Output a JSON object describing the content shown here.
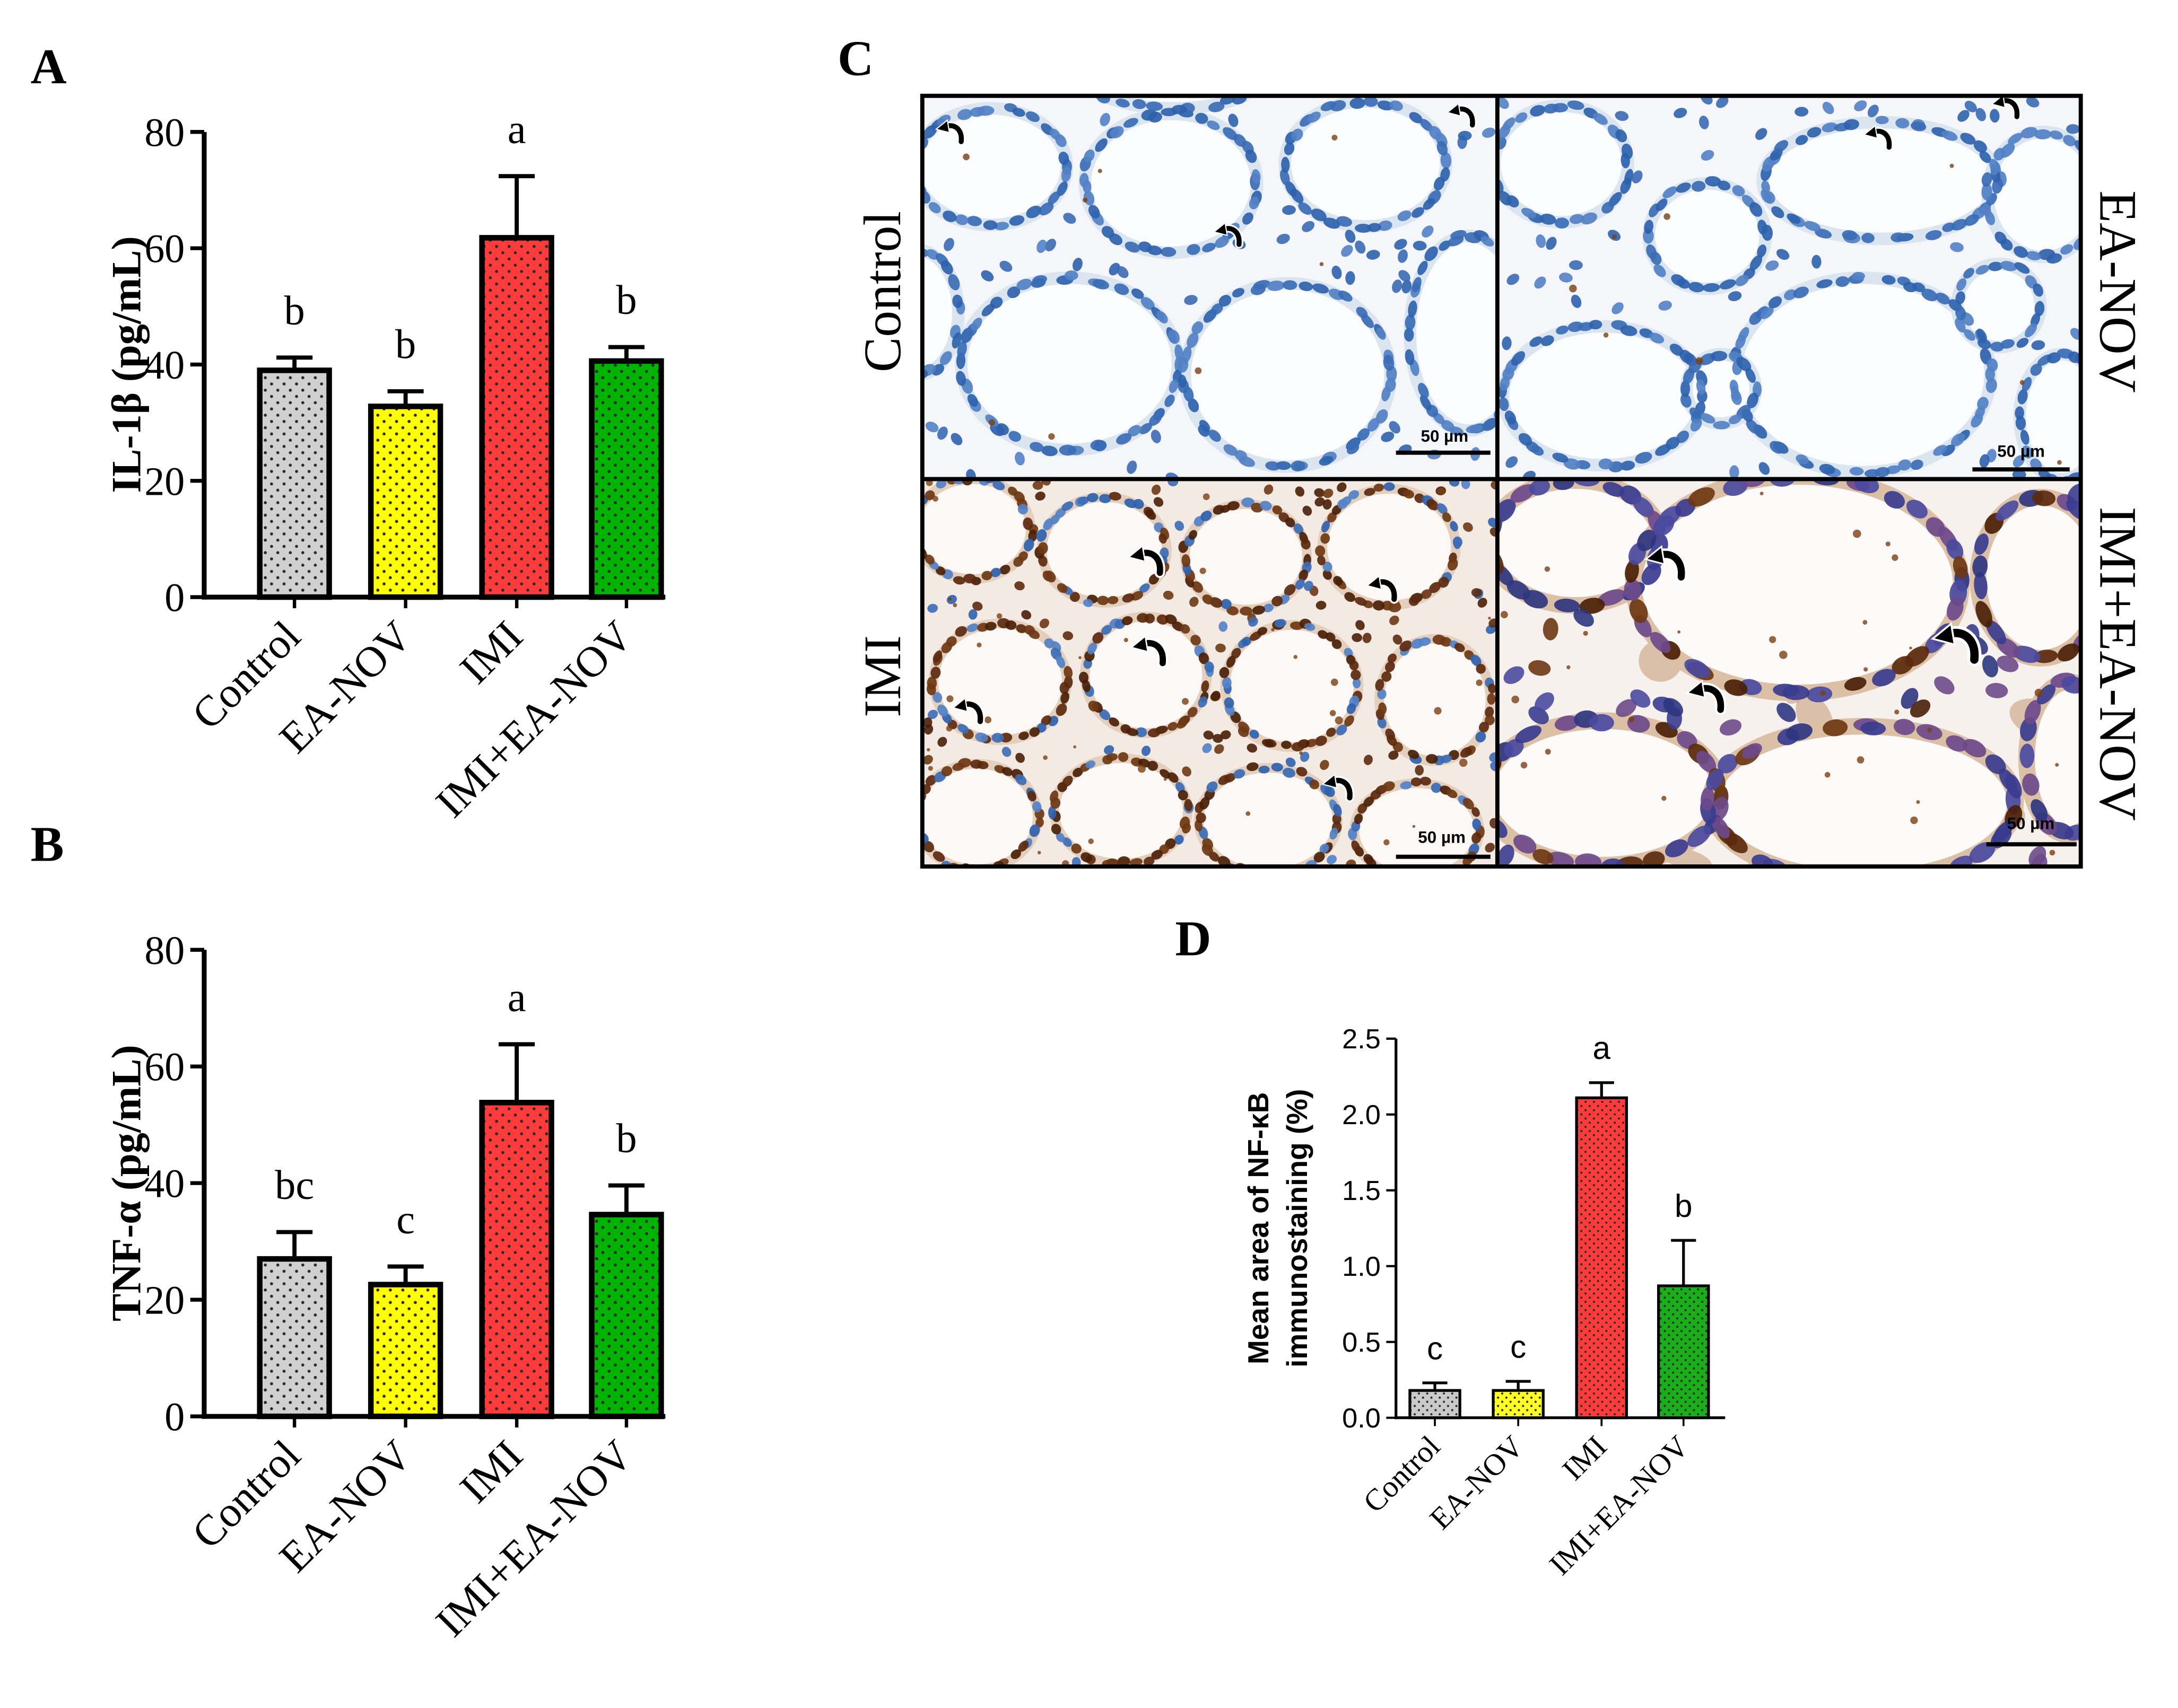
{
  "panel_c": {
    "label": "C",
    "labels": {
      "control": "Control",
      "ea_nov": "EA-NOV",
      "imi": "IMI",
      "imi_ea_nov": "IMI+EA-NOV"
    },
    "scale_bar_label": "50 µm",
    "arrow_icon": "curved-arrow-icon",
    "stain_colors": {
      "hematoxylin": "#2f62ad",
      "hematoxylin_dark": "#3a3c8f",
      "dab_positive": "#5b2a0e"
    }
  },
  "chart_data": [
    {
      "panel": "A",
      "type": "bar",
      "categories": [
        "Control",
        "EA-NOV",
        "IMI",
        "IMI+EA-NOV"
      ],
      "values": [
        39.0,
        32.8,
        61.8,
        40.6
      ],
      "error": [
        2.2,
        2.6,
        10.6,
        2.4
      ],
      "significance": [
        "b",
        "b",
        "a",
        "b"
      ],
      "xlabel": "",
      "ylabel": "IL-1β (pg/mL)",
      "ylim": [
        0,
        80
      ],
      "yticks": [
        "0",
        "20",
        "40",
        "60",
        "80"
      ],
      "colors": [
        "#d0d0d0",
        "#ffff00",
        "#ff3b3b",
        "#00b300"
      ],
      "grid": false
    },
    {
      "panel": "B",
      "type": "bar",
      "categories": [
        "Control",
        "EA-NOV",
        "IMI",
        "IMI+EA-NOV"
      ],
      "values": [
        27.0,
        22.6,
        53.8,
        34.6
      ],
      "error": [
        4.6,
        3.1,
        10.0,
        5.0
      ],
      "significance": [
        "bc",
        "c",
        "a",
        "b"
      ],
      "xlabel": "",
      "ylabel": "TNF-α (pg/mL)",
      "ylim": [
        0,
        80
      ],
      "yticks": [
        "0",
        "20",
        "40",
        "60",
        "80"
      ],
      "colors": [
        "#d0d0d0",
        "#ffff00",
        "#ff3b3b",
        "#00b300"
      ],
      "grid": false
    },
    {
      "panel": "D",
      "type": "bar",
      "categories": [
        "Control",
        "EA-NOV",
        "IMI",
        "IMI+EA-NOV"
      ],
      "values": [
        0.18,
        0.18,
        2.11,
        0.87
      ],
      "error": [
        0.05,
        0.06,
        0.1,
        0.3
      ],
      "significance": [
        "c",
        "c",
        "a",
        "b"
      ],
      "xlabel": "",
      "ylabel": [
        "Mean area of NF-κB",
        "immunostaining (%)"
      ],
      "ylim": [
        0,
        2.5
      ],
      "yticks": [
        "0.0",
        "0.5",
        "1.0",
        "1.5",
        "2.0",
        "2.5"
      ],
      "colors": [
        "#c9c9c9",
        "#ffff26",
        "#ff3b3b",
        "#1aaf1a"
      ],
      "grid": false
    }
  ]
}
